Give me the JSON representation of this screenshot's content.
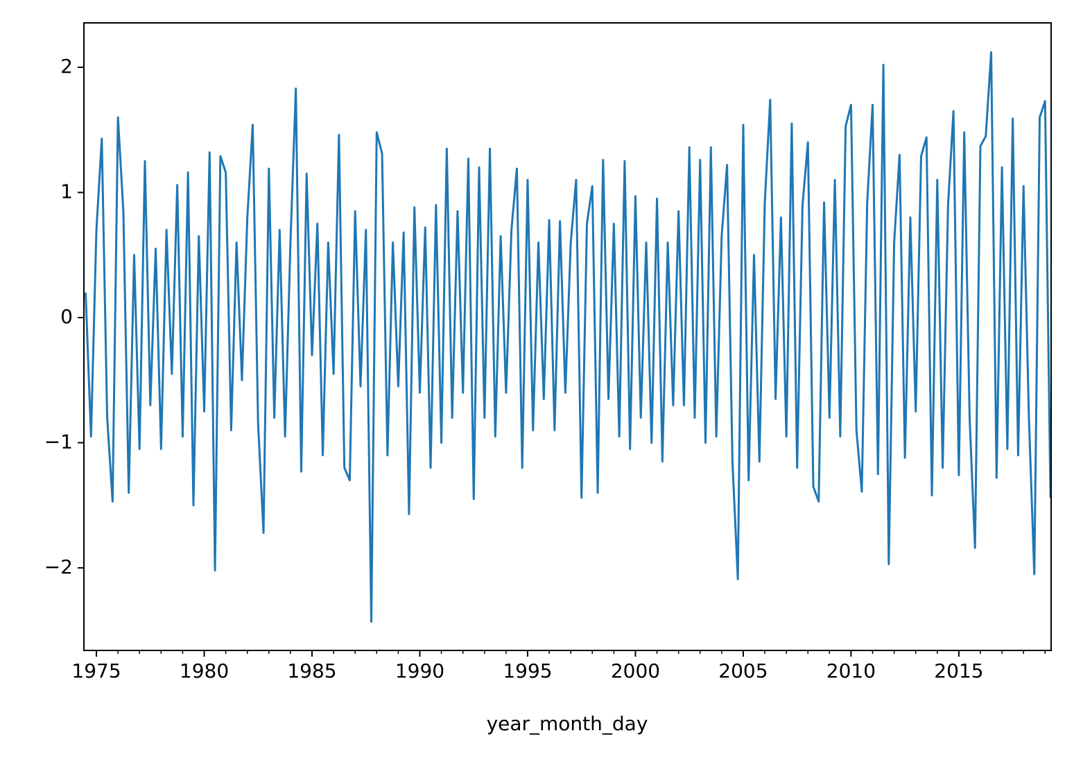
{
  "chart_data": {
    "type": "line",
    "xlabel": "year_month_day",
    "xlim": [
      1974.42,
      2019.28
    ],
    "xticks": [
      1975,
      1980,
      1985,
      1990,
      1995,
      2000,
      2005,
      2010,
      2015
    ],
    "xminorticks": [
      1976,
      1977,
      1978,
      1979,
      1981,
      1982,
      1983,
      1984,
      1986,
      1987,
      1988,
      1989,
      1991,
      1992,
      1993,
      1994,
      1996,
      1997,
      1998,
      1999,
      2001,
      2002,
      2003,
      2004,
      2006,
      2007,
      2008,
      2009,
      2011,
      2012,
      2013,
      2014,
      2016,
      2017,
      2018,
      2019
    ],
    "ylim": [
      -2.66,
      2.355
    ],
    "yticks": [
      {
        "value": -2,
        "label": "−2"
      },
      {
        "value": -1,
        "label": "−1"
      },
      0,
      1,
      2
    ],
    "grid": false,
    "series": [
      {
        "color": "#1f77b4",
        "x": [
          1974.5,
          1974.75,
          1975,
          1975.25,
          1975.5,
          1975.75,
          1976,
          1976.25,
          1976.5,
          1976.75,
          1977,
          1977.25,
          1977.5,
          1977.75,
          1978,
          1978.25,
          1978.5,
          1978.75,
          1979,
          1979.25,
          1979.5,
          1979.75,
          1980,
          1980.25,
          1980.5,
          1980.75,
          1981,
          1981.25,
          1981.5,
          1981.75,
          1982,
          1982.25,
          1982.5,
          1982.75,
          1983,
          1983.25,
          1983.5,
          1983.75,
          1984,
          1984.25,
          1984.5,
          1984.75,
          1985,
          1985.25,
          1985.5,
          1985.75,
          1986,
          1986.25,
          1986.5,
          1986.75,
          1987,
          1987.25,
          1987.5,
          1987.75,
          1988,
          1988.25,
          1988.5,
          1988.75,
          1989,
          1989.25,
          1989.5,
          1989.75,
          1990,
          1990.25,
          1990.5,
          1990.75,
          1991,
          1991.25,
          1991.5,
          1991.75,
          1992,
          1992.25,
          1992.5,
          1992.75,
          1993,
          1993.25,
          1993.5,
          1993.75,
          1994,
          1994.25,
          1994.5,
          1994.75,
          1995,
          1995.25,
          1995.5,
          1995.75,
          1996,
          1996.25,
          1996.5,
          1996.75,
          1997,
          1997.25,
          1997.5,
          1997.75,
          1998,
          1998.25,
          1998.5,
          1998.75,
          1999,
          1999.25,
          1999.5,
          1999.75,
          2000,
          2000.25,
          2000.5,
          2000.75,
          2001,
          2001.25,
          2001.5,
          2001.75,
          2002,
          2002.25,
          2002.5,
          2002.75,
          2003,
          2003.25,
          2003.5,
          2003.75,
          2004,
          2004.25,
          2004.5,
          2004.75,
          2005,
          2005.25,
          2005.5,
          2005.75,
          2006,
          2006.25,
          2006.5,
          2006.75,
          2007,
          2007.25,
          2007.5,
          2007.75,
          2008,
          2008.25,
          2008.5,
          2008.75,
          2009,
          2009.25,
          2009.5,
          2009.75,
          2010,
          2010.25,
          2010.5,
          2010.75,
          2011,
          2011.25,
          2011.5,
          2011.75,
          2012,
          2012.25,
          2012.5,
          2012.75,
          2013,
          2013.25,
          2013.5,
          2013.75,
          2014,
          2014.25,
          2014.5,
          2014.75,
          2015,
          2015.25,
          2015.5,
          2015.75,
          2016,
          2016.25,
          2016.5,
          2016.75,
          2017,
          2017.25,
          2017.5,
          2017.75,
          2018,
          2018.25,
          2018.5,
          2018.75,
          2019,
          2019.25
        ],
        "values": [
          0.2,
          -0.95,
          0.7,
          1.43,
          -0.8,
          -1.47,
          1.6,
          0.85,
          -1.4,
          0.5,
          -1.05,
          1.25,
          -0.7,
          0.55,
          -1.05,
          0.7,
          -0.45,
          1.06,
          -0.95,
          1.16,
          -1.5,
          0.65,
          -0.75,
          1.32,
          -2.02,
          1.29,
          1.16,
          -0.9,
          0.6,
          -0.5,
          0.8,
          1.54,
          -0.85,
          -1.72,
          1.19,
          -0.8,
          0.7,
          -0.95,
          0.6,
          1.83,
          -1.23,
          1.15,
          -0.3,
          0.75,
          -1.1,
          0.6,
          -0.45,
          1.46,
          -1.2,
          -1.3,
          0.85,
          -0.55,
          0.7,
          -2.43,
          1.48,
          1.31,
          -1.1,
          0.6,
          -0.55,
          0.68,
          -1.57,
          0.88,
          -0.6,
          0.72,
          -1.2,
          0.9,
          -1.0,
          1.35,
          -0.8,
          0.85,
          -0.6,
          1.27,
          -1.45,
          1.2,
          -0.8,
          1.35,
          -0.95,
          0.65,
          -0.6,
          0.7,
          1.19,
          -1.2,
          1.1,
          -0.9,
          0.6,
          -0.65,
          0.78,
          -0.9,
          0.77,
          -0.6,
          0.6,
          1.1,
          -1.44,
          0.75,
          1.05,
          -1.4,
          1.26,
          -0.65,
          0.75,
          -0.95,
          1.25,
          -1.05,
          0.97,
          -0.8,
          0.6,
          -1.0,
          0.95,
          -1.15,
          0.6,
          -0.7,
          0.85,
          -0.7,
          1.36,
          -0.8,
          1.26,
          -1.0,
          1.36,
          -0.95,
          0.65,
          1.22,
          -1.15,
          -2.09,
          1.54,
          -1.3,
          0.5,
          -1.15,
          0.92,
          1.74,
          -0.65,
          0.8,
          -0.95,
          1.55,
          -1.2,
          0.9,
          1.4,
          -1.35,
          -1.47,
          0.92,
          -0.8,
          1.1,
          -0.95,
          1.53,
          1.7,
          -0.9,
          -1.39,
          0.92,
          1.7,
          -1.25,
          2.02,
          -1.97,
          0.6,
          1.3,
          -1.12,
          0.8,
          -0.75,
          1.29,
          1.44,
          -1.42,
          1.1,
          -1.2,
          0.9,
          1.65,
          -1.26,
          1.48,
          -0.8,
          -1.84,
          1.37,
          1.45,
          2.12,
          -1.28,
          1.2,
          -1.05,
          1.59,
          -1.1,
          1.05,
          -0.8,
          -2.05,
          1.6,
          1.73,
          -1.44
        ]
      }
    ]
  }
}
